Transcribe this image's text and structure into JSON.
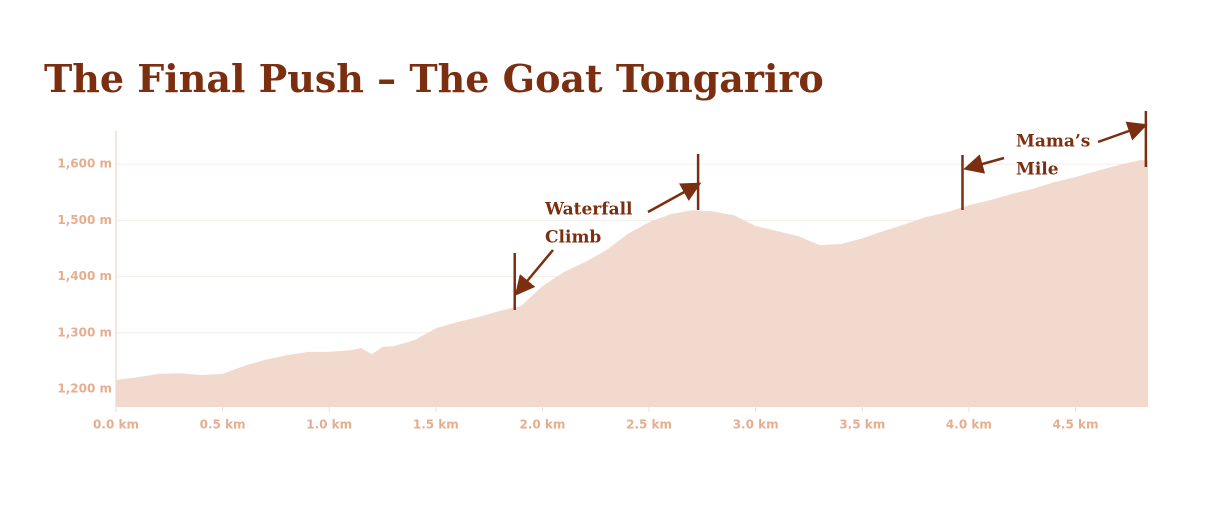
{
  "chart_data": {
    "type": "area",
    "title": "The Final Push – The Goat Tongariro",
    "x": [
      0,
      0.1,
      0.2,
      0.3,
      0.4,
      0.5,
      0.6,
      0.7,
      0.8,
      0.9,
      1.0,
      1.1,
      1.15,
      1.2,
      1.25,
      1.3,
      1.4,
      1.5,
      1.6,
      1.7,
      1.8,
      1.9,
      2.0,
      2.1,
      2.2,
      2.3,
      2.4,
      2.5,
      2.6,
      2.7,
      2.8,
      2.9,
      3.0,
      3.1,
      3.2,
      3.3,
      3.4,
      3.5,
      3.6,
      3.7,
      3.8,
      3.9,
      4.0,
      4.1,
      4.2,
      4.3,
      4.4,
      4.5,
      4.6,
      4.7,
      4.8,
      4.84
    ],
    "series": [
      {
        "color": "#f2d9cd",
        "values": [
          1216,
          1221,
          1227,
          1228,
          1225,
          1227,
          1241,
          1252,
          1260,
          1266,
          1266,
          1269,
          1273,
          1262,
          1275,
          1276,
          1287,
          1308,
          1319,
          1328,
          1339,
          1348,
          1383,
          1408,
          1426,
          1447,
          1476,
          1497,
          1511,
          1518,
          1516,
          1509,
          1490,
          1481,
          1472,
          1456,
          1458,
          1468,
          1481,
          1493,
          1506,
          1515,
          1527,
          1536,
          1547,
          1556,
          1568,
          1577,
          1588,
          1598,
          1607,
          1607
        ]
      }
    ],
    "xlim": [
      0,
      4.84
    ],
    "ylim": [
      1168,
      1659
    ],
    "xticks": [
      {
        "value": 0,
        "label": "0.0 km"
      },
      {
        "value": 0.5,
        "label": "0.5 km"
      },
      {
        "value": 1,
        "label": "1.0 km"
      },
      {
        "value": 1.5,
        "label": "1.5 km"
      },
      {
        "value": 2,
        "label": "2.0 km"
      },
      {
        "value": 2.5,
        "label": "2.5 km"
      },
      {
        "value": 3,
        "label": "3.0 km"
      },
      {
        "value": 3.5,
        "label": "3.5 km"
      },
      {
        "value": 4,
        "label": "4.0 km"
      },
      {
        "value": 4.5,
        "label": "4.5 km"
      }
    ],
    "yticks": [
      {
        "value": 1200,
        "label": "1,200 m"
      },
      {
        "value": 1300,
        "label": "1,300 m"
      },
      {
        "value": 1400,
        "label": "1,400 m"
      },
      {
        "value": 1500,
        "label": "1,500 m"
      },
      {
        "value": 1600,
        "label": "1,600 m"
      }
    ],
    "grid": true,
    "annotations": [
      {
        "lines": [
          "Waterfall",
          "Climb"
        ],
        "start": 1.87,
        "end": 2.73
      },
      {
        "lines": [
          "Mama’s",
          "Mile"
        ],
        "start": 3.97,
        "end": 4.83
      }
    ]
  }
}
